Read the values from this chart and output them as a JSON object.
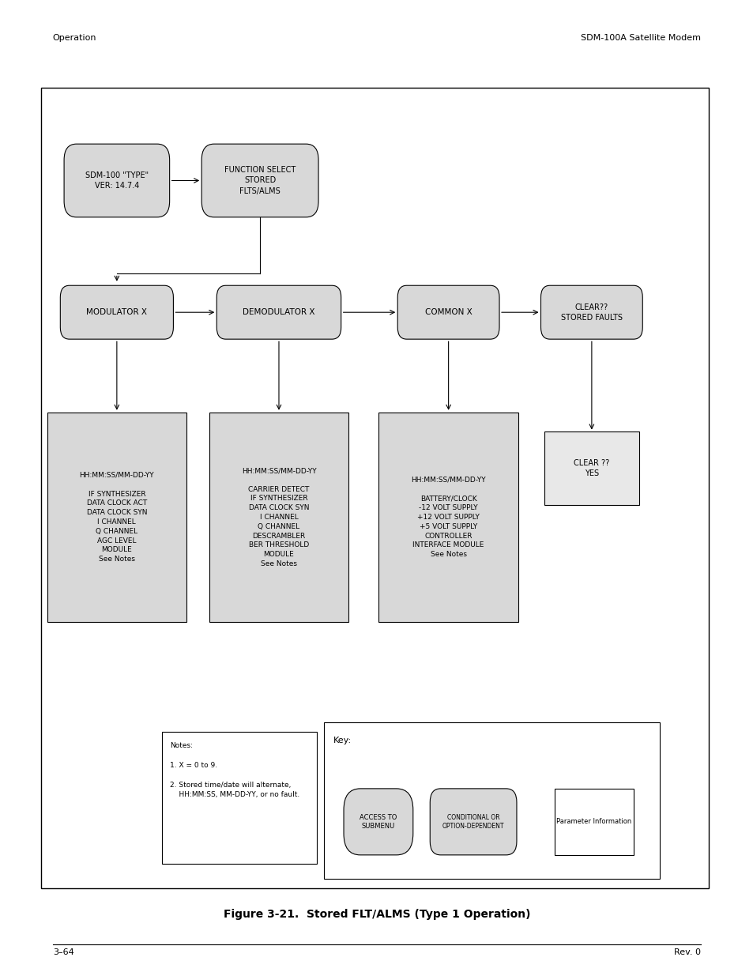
{
  "page_header_left": "Operation",
  "page_header_right": "SDM-100A Satellite Modem",
  "page_footer_left": "3–64",
  "page_footer_right": "Rev. 0",
  "figure_caption": "Figure 3-21.  Stored FLT/ALMS (Type 1 Operation)",
  "bg_color": "#ffffff",
  "box_fill": "#d8d8d8",
  "box_fill_light": "#e8e8e8",
  "box_stroke": "#000000"
}
